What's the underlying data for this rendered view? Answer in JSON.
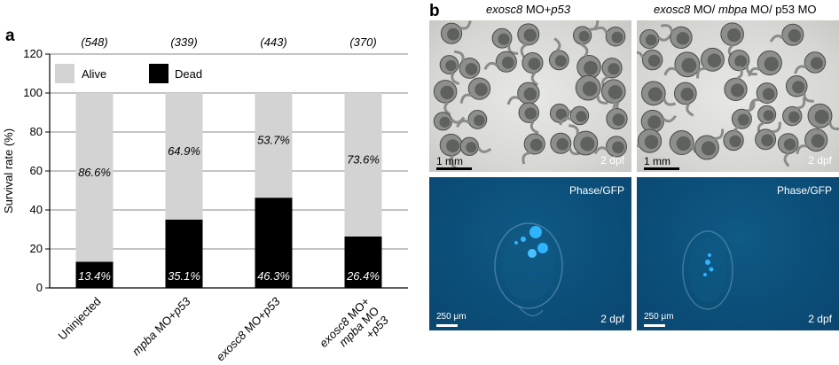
{
  "panel_a": {
    "letter": "a"
  },
  "panel_b": {
    "letter": "b",
    "columns": [
      {
        "title_italic": "exosc8",
        "title_rest": " MO+",
        "title_italic2": "p53",
        "title_rest2": ""
      },
      {
        "title_italic": "exosc8",
        "title_rest": " MO/ ",
        "title_italic2": "mbpa",
        "title_rest2": " MO/ p53 MO"
      }
    ],
    "bright_scale": "1 mm",
    "fluor_scale": "250 μm",
    "stage": "2 dpf",
    "fluor_label": "Phase/GFP",
    "colors": {
      "fluor_bg": "#0b4f79",
      "gfp": "#2fb4ff"
    }
  },
  "chart_data": {
    "type": "bar",
    "stacked": true,
    "categories": [
      "Uninjected",
      "mpba MO+p53",
      "exosc8 MO+p53",
      "exosc8 MO+ mpba MO +p53"
    ],
    "category_lines": [
      [
        {
          "t": "Uninjected",
          "i": false
        }
      ],
      [
        {
          "t": "mpba",
          "i": true
        },
        {
          "t": " MO+",
          "i": false
        },
        {
          "t": "p53",
          "i": true
        }
      ],
      [
        {
          "t": "exosc8",
          "i": true
        },
        {
          "t": " MO+",
          "i": false
        },
        {
          "t": "p53",
          "i": true
        }
      ],
      [
        {
          "t": "exosc8",
          "i": true
        },
        {
          "t": " MO+",
          "i": false
        }
      ]
    ],
    "category_extra_lines": [
      [],
      [],
      [],
      [
        [
          {
            "t": "mpba",
            "i": true
          },
          {
            "t": " MO",
            "i": false
          }
        ],
        [
          {
            "t": "+",
            "i": false
          },
          {
            "t": "p53",
            "i": true
          }
        ]
      ]
    ],
    "n_labels": [
      "(548)",
      "(339)",
      "(443)",
      "(370)"
    ],
    "series": [
      {
        "name": "Dead",
        "color": "#000000",
        "values": [
          13.4,
          35.1,
          46.3,
          26.4
        ],
        "labels": [
          "13.4%",
          "35.1%",
          "46.3%",
          "26.4%"
        ]
      },
      {
        "name": "Alive",
        "color": "#d3d3d3",
        "values": [
          86.6,
          64.9,
          53.7,
          73.6
        ],
        "labels": [
          "86.6%",
          "64.9%",
          "53.7%",
          "73.6%"
        ]
      }
    ],
    "ylabel": "Survival rate (%)",
    "ylim": [
      0,
      120
    ],
    "yticks": [
      0,
      20,
      40,
      60,
      80,
      100,
      120
    ],
    "grid": true,
    "legend": [
      "Alive",
      "Dead"
    ]
  }
}
